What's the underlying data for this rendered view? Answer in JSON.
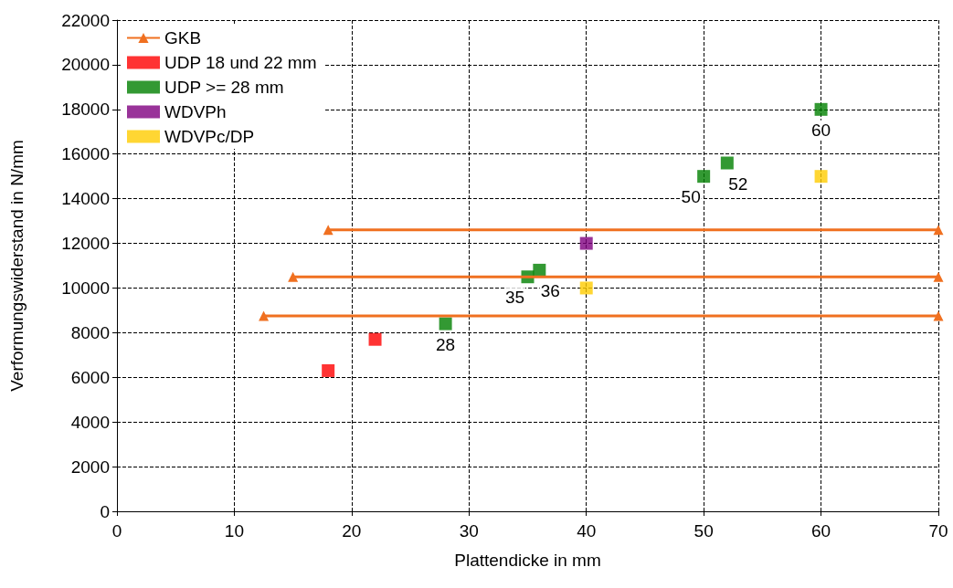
{
  "chart_data": {
    "type": "scatter",
    "xlabel": "Plattendicke in mm",
    "ylabel": "Verformungswiderstand in N/mm",
    "xlim": [
      0,
      70
    ],
    "xticks": [
      0,
      10,
      20,
      30,
      40,
      50,
      60,
      70
    ],
    "ylim": [
      0,
      22000
    ],
    "yticks": [
      0,
      2000,
      4000,
      6000,
      8000,
      10000,
      12000,
      14000,
      16000,
      18000,
      20000,
      22000
    ],
    "grid": true,
    "legend": "top left",
    "series": [
      {
        "name": "GKB",
        "type": "line",
        "color": "#f07020",
        "marker": "triangle",
        "line_style": "solid",
        "x": [
          12.5,
          70,
          null,
          15,
          70,
          null,
          18,
          70
        ],
        "values": [
          8750,
          8750,
          null,
          10500,
          10500,
          null,
          12600,
          12600
        ]
      },
      {
        "name": "UDP 18 und 22 mm",
        "color": "#ff0000",
        "marker": "square",
        "x": [
          18,
          22
        ],
        "values": [
          6300,
          7700
        ]
      },
      {
        "name": "UDP >= 28 mm",
        "color": "#008000",
        "marker": "square",
        "x": [
          28,
          35,
          36,
          50,
          52,
          60
        ],
        "values": [
          8400,
          10500,
          10800,
          15000,
          15600,
          18000
        ]
      },
      {
        "name": "WDVPh",
        "color": "#800080",
        "marker": "square",
        "x": [
          40
        ],
        "values": [
          12000
        ]
      },
      {
        "name": "WDVPc/DP",
        "color": "#ffcc00",
        "marker": "square",
        "x": [
          40,
          60
        ],
        "values": [
          10000,
          15000
        ]
      }
    ],
    "annotations": [
      {
        "text": "28",
        "x": 28,
        "y": 8400
      },
      {
        "text": "35",
        "x": 35,
        "y": 10500
      },
      {
        "text": "36",
        "x": 36,
        "y": 10800
      },
      {
        "text": "50",
        "x": 50,
        "y": 15000
      },
      {
        "text": "52",
        "x": 52,
        "y": 15600
      },
      {
        "text": "60",
        "x": 60,
        "y": 18000
      }
    ]
  }
}
